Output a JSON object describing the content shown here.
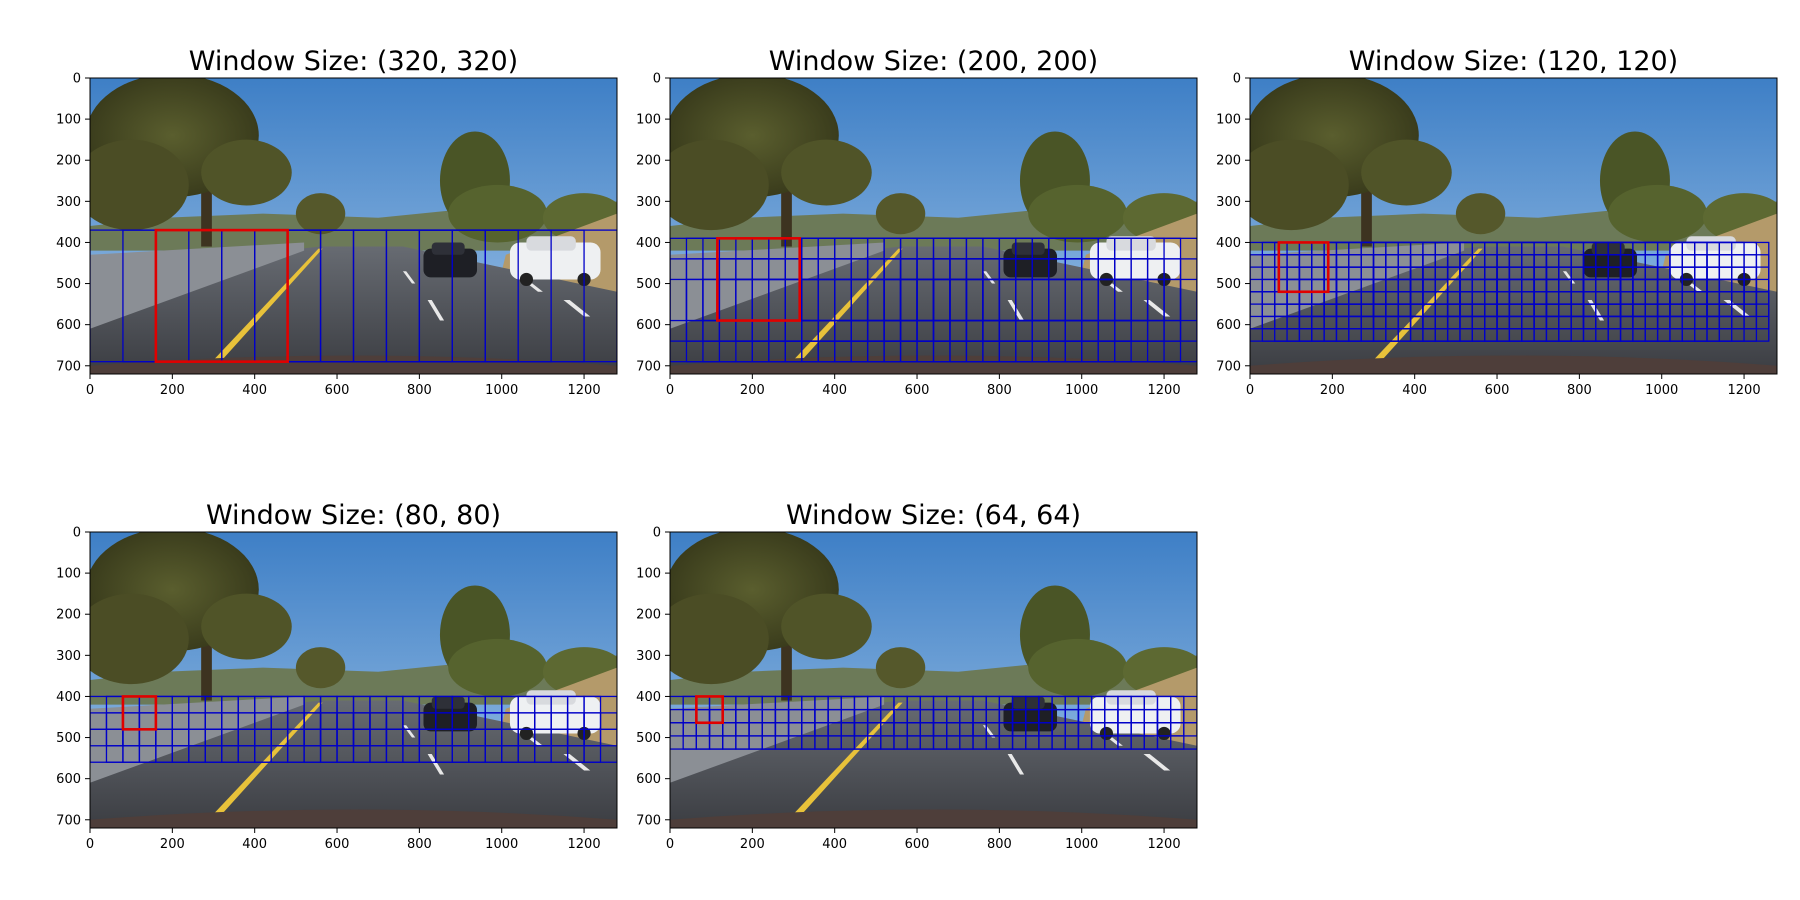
{
  "figure": {
    "panels": [
      {
        "title": "Window Size: (320, 320)",
        "window": 320,
        "y_start": 370,
        "y_stop": 690,
        "x_step": 80,
        "y_step": 320,
        "highlight": {
          "x": 160,
          "y": 370
        }
      },
      {
        "title": "Window Size: (200, 200)",
        "window": 200,
        "y_start": 390,
        "y_stop": 690,
        "x_step": 40,
        "y_step": 50,
        "highlight": {
          "x": 115,
          "y": 390
        }
      },
      {
        "title": "Window Size: (120, 120)",
        "window": 120,
        "y_start": 400,
        "y_stop": 640,
        "x_step": 30,
        "y_step": 30,
        "highlight": {
          "x": 70,
          "y": 400
        }
      },
      {
        "title": "Window Size: (80, 80)",
        "window": 80,
        "y_start": 400,
        "y_stop": 560,
        "x_step": 40,
        "y_step": 40,
        "highlight": {
          "x": 80,
          "y": 400
        }
      },
      {
        "title": "Window Size: (64, 64)",
        "window": 64,
        "y_start": 400,
        "y_stop": 528,
        "x_step": 32,
        "y_step": 32,
        "highlight": {
          "x": 64,
          "y": 400
        }
      }
    ],
    "x_ticks": [
      "0",
      "200",
      "400",
      "600",
      "800",
      "1000",
      "1200"
    ],
    "y_ticks": [
      "0",
      "100",
      "200",
      "300",
      "400",
      "500",
      "600",
      "700"
    ],
    "colors": {
      "grid": "#0000c8",
      "highlight": "#e00000"
    }
  }
}
